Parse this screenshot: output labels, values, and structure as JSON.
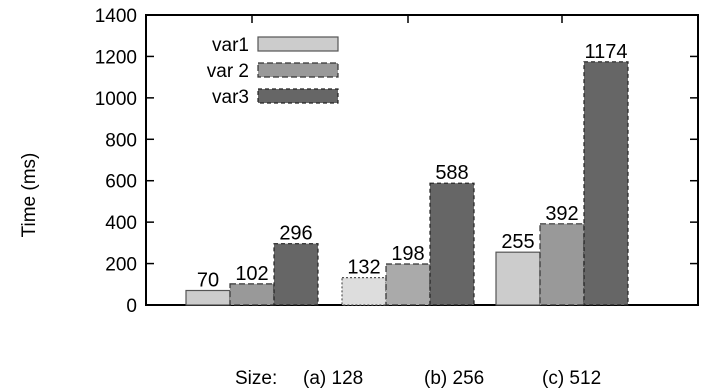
{
  "chart_data": {
    "type": "bar",
    "categories": [
      "(a) 128",
      "(b) 256",
      "(c) 512"
    ],
    "series": [
      {
        "name": "var1",
        "values": [
          70,
          132,
          255
        ]
      },
      {
        "name": "var 2",
        "values": [
          102,
          198,
          392
        ]
      },
      {
        "name": "var3",
        "values": [
          296,
          588,
          1174
        ]
      }
    ],
    "ylabel": "Time (ms)",
    "xlabel_prefix": "Size:",
    "ylim": [
      0,
      1400
    ],
    "yticks": [
      0,
      200,
      400,
      600,
      800,
      1000,
      1200,
      1400
    ],
    "grid": false,
    "legend_position": "top-left",
    "colors": [
      "#cccccc",
      "#999999",
      "#666666"
    ],
    "bar_label_texts": [
      [
        "70",
        "132",
        "255"
      ],
      [
        "102",
        "198",
        "392"
      ],
      [
        "296",
        "588",
        "1174"
      ]
    ],
    "ytick_labels": [
      "0",
      "200",
      "400",
      "600",
      "800",
      "1000",
      "1200",
      "1400"
    ]
  }
}
